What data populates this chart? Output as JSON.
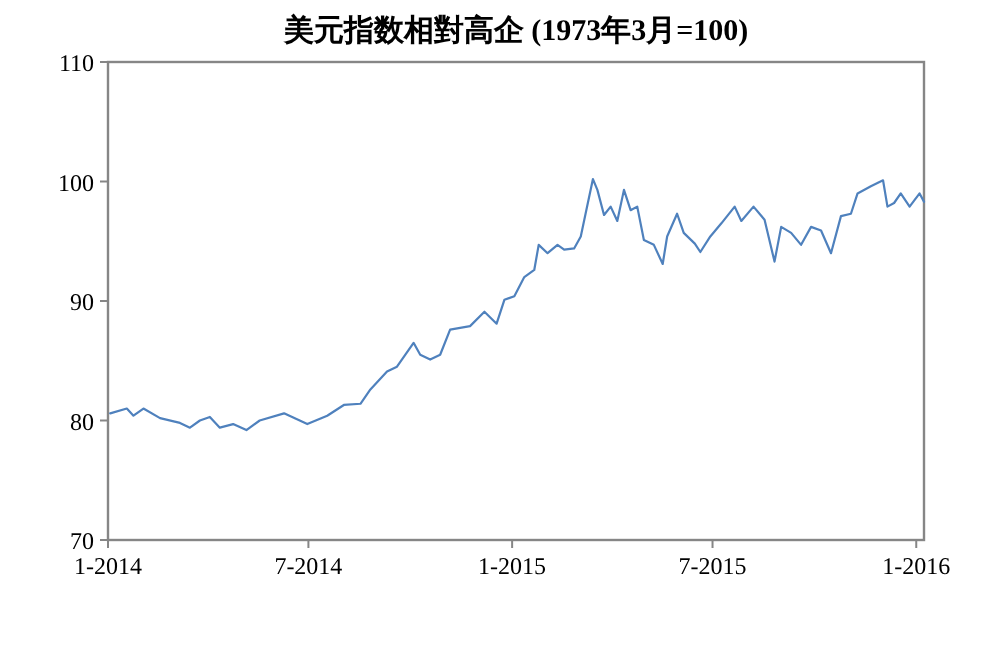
{
  "chart_data": {
    "type": "line",
    "title": "美元指数相對高企 (1973年3月=100)",
    "x": [
      "2014-01-03",
      "2014-01-18",
      "2014-01-24",
      "2014-02-02",
      "2014-02-17",
      "2014-03-07",
      "2014-03-16",
      "2014-03-25",
      "2014-04-03",
      "2014-04-12",
      "2014-04-24",
      "2014-05-06",
      "2014-05-18",
      "2014-06-09",
      "2014-06-30",
      "2014-07-18",
      "2014-08-02",
      "2014-08-17",
      "2014-08-26",
      "2014-09-10",
      "2014-09-19",
      "2014-10-04",
      "2014-10-10",
      "2014-10-19",
      "2014-10-28",
      "2014-11-06",
      "2014-11-24",
      "2014-12-07",
      "2014-12-18",
      "2014-12-25",
      "2015-01-03",
      "2015-01-12",
      "2015-01-21",
      "2015-01-25",
      "2015-02-02",
      "2015-02-11",
      "2015-02-17",
      "2015-02-26",
      "2015-03-04",
      "2015-03-09",
      "2015-03-15",
      "2015-03-19",
      "2015-03-25",
      "2015-03-31",
      "2015-04-06",
      "2015-04-12",
      "2015-04-18",
      "2015-04-24",
      "2015-04-30",
      "2015-05-09",
      "2015-05-17",
      "2015-05-21",
      "2015-05-30",
      "2015-06-05",
      "2015-06-15",
      "2015-06-20",
      "2015-06-29",
      "2015-07-09",
      "2015-07-21",
      "2015-07-27",
      "2015-08-07",
      "2015-08-17",
      "2015-08-26",
      "2015-09-01",
      "2015-09-10",
      "2015-09-19",
      "2015-09-28",
      "2015-10-07",
      "2015-10-16",
      "2015-10-25",
      "2015-11-03",
      "2015-11-09",
      "2015-11-21",
      "2015-12-02",
      "2015-12-06",
      "2015-12-12",
      "2015-12-18",
      "2015-12-26",
      "2016-01-04",
      "2016-01-08"
    ],
    "series": [
      {
        "color": "#4f81bd",
        "values": [
          80.6,
          81.0,
          80.4,
          81.0,
          80.2,
          79.8,
          79.4,
          80.0,
          80.3,
          79.4,
          79.7,
          79.2,
          80.0,
          80.6,
          79.7,
          80.4,
          81.3,
          81.4,
          82.6,
          84.1,
          84.5,
          86.5,
          85.5,
          85.1,
          85.5,
          87.6,
          87.9,
          89.1,
          88.1,
          90.1,
          90.4,
          92.0,
          92.6,
          94.7,
          94.0,
          94.7,
          94.3,
          94.4,
          95.4,
          97.6,
          100.2,
          99.3,
          97.2,
          97.9,
          96.7,
          99.3,
          97.6,
          97.9,
          95.1,
          94.7,
          93.1,
          95.4,
          97.3,
          95.7,
          94.8,
          94.1,
          95.4,
          96.5,
          97.9,
          96.7,
          97.9,
          96.8,
          93.3,
          96.2,
          95.7,
          94.7,
          96.2,
          95.9,
          94.0,
          97.1,
          97.3,
          99.0,
          99.6,
          100.1,
          97.9,
          98.2,
          99.0,
          97.9,
          99.0,
          98.3
        ]
      }
    ],
    "xlim": [
      "2014-01-01",
      "2016-01-08"
    ],
    "xticks": [
      {
        "value": "2014-01-01",
        "label": "1-2014"
      },
      {
        "value": "2014-07-01",
        "label": "7-2014"
      },
      {
        "value": "2015-01-01",
        "label": "1-2015"
      },
      {
        "value": "2015-07-01",
        "label": "7-2015"
      },
      {
        "value": "2016-01-01",
        "label": "1-2016"
      }
    ],
    "ylim": [
      70,
      110
    ],
    "yticks": [
      70,
      80,
      90,
      100,
      110
    ],
    "grid": false,
    "marker": "none",
    "line_style": "solid"
  }
}
